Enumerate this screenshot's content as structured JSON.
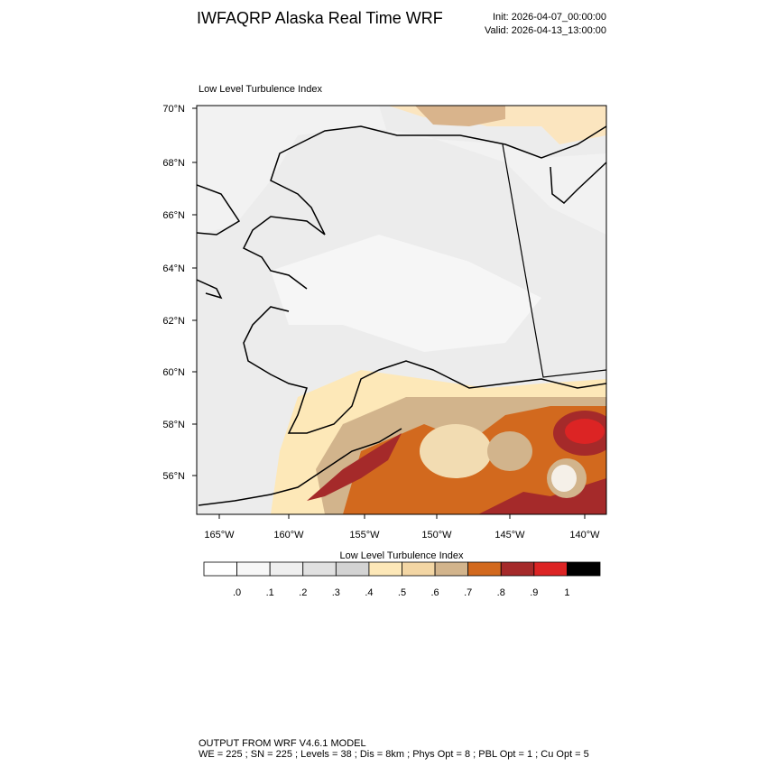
{
  "header": {
    "title": "IWFAQRP Alaska Real Time WRF",
    "init": "Init: 2026-04-07_00:00:00",
    "valid": "Valid: 2026-04-13_13:00:00"
  },
  "map": {
    "title": "Low Level Turbulence Index",
    "lat_labels": [
      "70°N",
      "68°N",
      "66°N",
      "64°N",
      "62°N",
      "60°N",
      "58°N",
      "56°N"
    ],
    "lon_labels": [
      "165°W",
      "160°W",
      "155°W",
      "150°W",
      "145°W",
      "140°W"
    ]
  },
  "colorbar": {
    "title": "Low Level Turbulence Index",
    "labels": [
      ".0",
      ".1",
      ".2",
      ".3",
      ".4",
      ".5",
      ".6",
      ".7",
      ".8",
      ".9",
      "1"
    ],
    "colors": [
      "#ffffff",
      "#f7f7f7",
      "#efefef",
      "#e1e1e1",
      "#d3d3d3",
      "#fde8b8",
      "#f3d6a4",
      "#d2b48c",
      "#d2691e",
      "#a52a2a",
      "#dc2424",
      "#000000"
    ]
  },
  "footer": {
    "line1": "OUTPUT FROM WRF V4.6.1 MODEL",
    "line2": "WE = 225 ; SN = 225 ; Levels = 38 ; Dis = 8km ; Phys Opt = 8 ; PBL Opt = 1 ; Cu Opt = 5"
  }
}
